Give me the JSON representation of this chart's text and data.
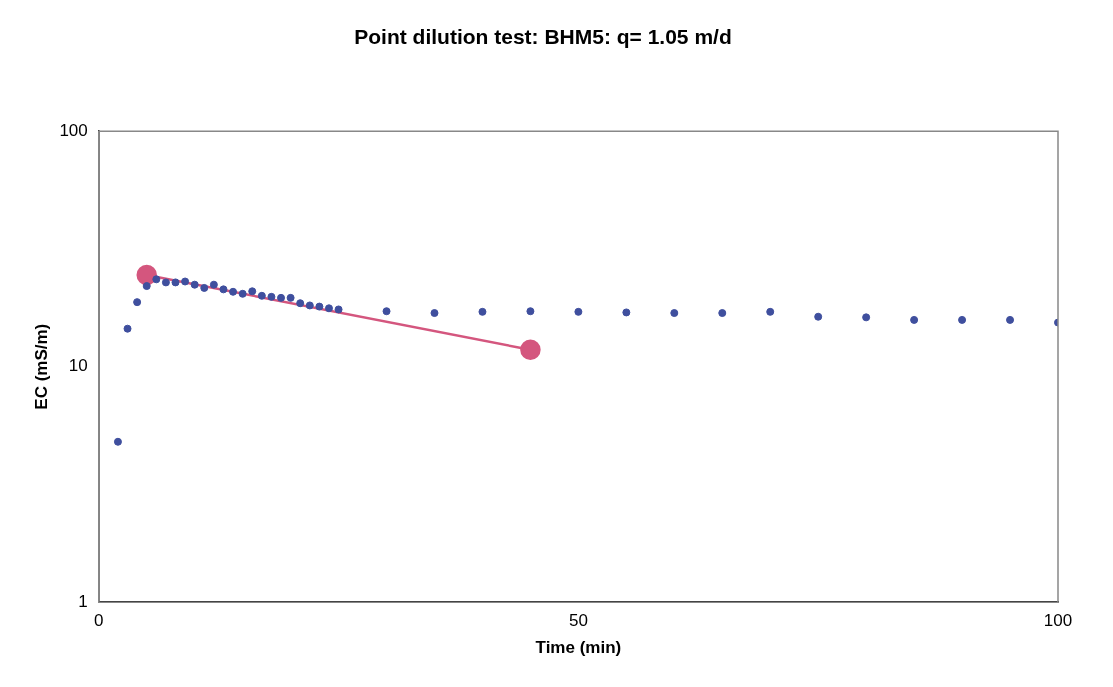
{
  "chart_data": {
    "type": "scatter",
    "title": "Point dilution test: BHM5: q= 1.05 m/d",
    "xlabel": "Time (min)",
    "ylabel": "EC (mS/m)",
    "log": "y",
    "xlim": [
      0,
      100
    ],
    "xticks": [
      0,
      50,
      100
    ],
    "ylim": [
      1,
      100
    ],
    "yticks": [
      1,
      10,
      100
    ],
    "grid": false,
    "legend": false,
    "marker": "circle",
    "series": [
      {
        "color": "#3f4f9e",
        "x": [
          2,
          3,
          4,
          5,
          6,
          7,
          8,
          9,
          10,
          11,
          12,
          13,
          14,
          15,
          16,
          17,
          18,
          19,
          20,
          21,
          22,
          23,
          24,
          25,
          30,
          35,
          40,
          45,
          50,
          55,
          60,
          65,
          70,
          75,
          80,
          85,
          90,
          95,
          100
        ],
        "values": [
          4.8,
          14.5,
          18.8,
          22,
          23.5,
          22.8,
          22.8,
          23,
          22.3,
          21.6,
          22.3,
          21.3,
          20.8,
          20.4,
          20.9,
          20,
          19.8,
          19.6,
          19.6,
          18.6,
          18.2,
          18,
          17.7,
          17.5,
          17.2,
          16.9,
          17.1,
          17.2,
          17.1,
          17,
          16.9,
          16.9,
          17.1,
          16.3,
          16.2,
          15.8,
          15.8,
          15.8,
          15.4
        ]
      },
      {
        "type": "line",
        "color": "#d4567e",
        "x": [
          5,
          45
        ],
        "values": [
          24.5,
          11.8
        ]
      }
    ]
  }
}
